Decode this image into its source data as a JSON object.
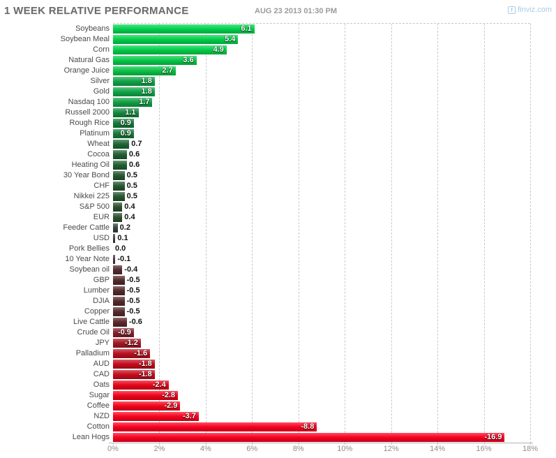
{
  "header": {
    "title": "1 WEEK RELATIVE PERFORMANCE",
    "timestamp": "AUG 23 2013 01:30 PM",
    "watermark": "finviz.com",
    "watermark_icon_letter": "f"
  },
  "colors": {
    "title": "#6b6b6b",
    "timestamp": "#9b9b9b",
    "watermark": "#a9cbe4",
    "grid": "#c9c9c9",
    "axis_line": "#b3b3b3",
    "tick_label": "#8d8d8d",
    "category_label": "#4a4a4a",
    "value_inside": "#ffffff",
    "value_outside": "#141414",
    "positive_max": "#00d44d",
    "negative_max": "#fb0021"
  },
  "chart_data": {
    "type": "bar",
    "orientation": "horizontal",
    "title": "1 WEEK RELATIVE PERFORMANCE",
    "timestamp": "AUG 23 2013 01:30 PM",
    "value_unit": "%",
    "bar_length_rule": "bar length encodes absolute value; green = positive, red = negative",
    "x_axis": {
      "ticks": [
        "0%",
        "2%",
        "4%",
        "6%",
        "8%",
        "10%",
        "12%",
        "14%",
        "16%",
        "18%"
      ],
      "range": [
        0,
        18
      ],
      "grid": "dashed"
    },
    "value_label_inside_threshold": 0.9,
    "categories": [
      "Soybeans",
      "Soybean Meal",
      "Corn",
      "Natural Gas",
      "Orange Juice",
      "Silver",
      "Gold",
      "Nasdaq 100",
      "Russell 2000",
      "Rough Rice",
      "Platinum",
      "Wheat",
      "Cocoa",
      "Heating Oil",
      "30 Year Bond",
      "CHF",
      "Nikkei 225",
      "S&P 500",
      "EUR",
      "Feeder Cattle",
      "USD",
      "Pork Bellies",
      "10 Year Note",
      "Soybean oil",
      "GBP",
      "Lumber",
      "DJIA",
      "Copper",
      "Live Cattle",
      "Crude Oil",
      "JPY",
      "Palladium",
      "AUD",
      "CAD",
      "Oats",
      "Sugar",
      "Coffee",
      "NZD",
      "Cotton",
      "Lean Hogs"
    ],
    "values": [
      6.1,
      5.4,
      4.9,
      3.6,
      2.7,
      1.8,
      1.8,
      1.7,
      1.1,
      0.9,
      0.9,
      0.7,
      0.6,
      0.6,
      0.5,
      0.5,
      0.5,
      0.4,
      0.4,
      0.2,
      0.1,
      0.0,
      -0.1,
      -0.4,
      -0.5,
      -0.5,
      -0.5,
      -0.5,
      -0.6,
      -0.9,
      -1.2,
      -1.6,
      -1.8,
      -1.8,
      -2.4,
      -2.8,
      -2.9,
      -3.7,
      -8.8,
      -16.9
    ],
    "bar_colors": [
      "#00d44d",
      "#00d24b",
      "#02d04a",
      "#05cb48",
      "#09c446",
      "#0fa647",
      "#0fa647",
      "#10a145",
      "#128a3e",
      "#147b39",
      "#147b39",
      "#1c6634",
      "#215e31",
      "#215e31",
      "#26562f",
      "#26562f",
      "#26562f",
      "#2b4f2e",
      "#2b4f2e",
      "#35443a",
      "#3a3f40",
      "#3f3a46",
      "#463440",
      "#512c31",
      "#542a2c",
      "#542a2c",
      "#542a2c",
      "#542a2c",
      "#5c272a",
      "#87202a",
      "#a21723",
      "#ba0f1e",
      "#c70b1c",
      "#c70b1c",
      "#ea0418",
      "#f40219",
      "#f5021a",
      "#fa011c",
      "#fb0020",
      "#fb0021"
    ]
  }
}
